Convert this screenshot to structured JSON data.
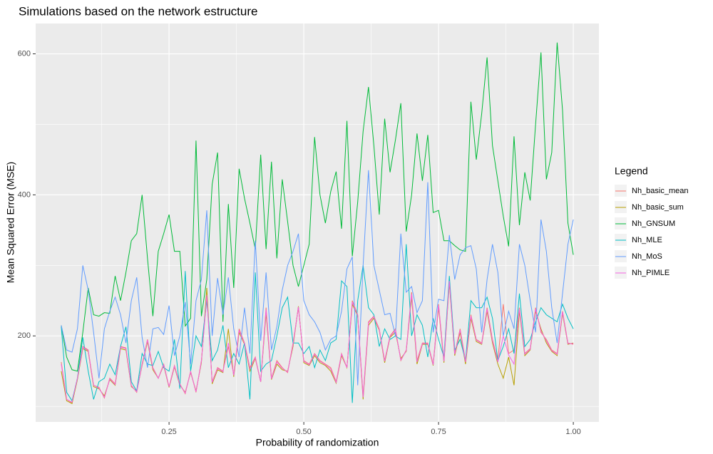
{
  "chart_data": {
    "type": "line",
    "title": "Simulations based on the network estructure",
    "x_label": "Probability of randomization",
    "y_label": "Mean Squared Error (MSE)",
    "legend_title": "Legend",
    "legend_position": "right",
    "grid": true,
    "xlim": [
      0.0025,
      1.0475
    ],
    "ylim": [
      78,
      643
    ],
    "xticks": [
      0.25,
      {
        "value": 0.5,
        "label": "0.50"
      },
      0.75,
      {
        "value": 1.0,
        "label": "1.00"
      }
    ],
    "yticks": [
      200,
      400,
      600
    ],
    "minor_xticks": [
      0.125,
      0.375,
      0.625,
      0.875
    ],
    "minor_yticks": [
      100,
      300,
      500
    ],
    "x": [
      0.05,
      0.06,
      0.07,
      0.08,
      0.09,
      0.1,
      0.11,
      0.12,
      0.13,
      0.14,
      0.15,
      0.16,
      0.17,
      0.18,
      0.19,
      0.2,
      0.21,
      0.22,
      0.23,
      0.24,
      0.25,
      0.26,
      0.27,
      0.28,
      0.29,
      0.3,
      0.31,
      0.32,
      0.33,
      0.34,
      0.35,
      0.36,
      0.37,
      0.38,
      0.39,
      0.4,
      0.41,
      0.42,
      0.43,
      0.44,
      0.45,
      0.46,
      0.47,
      0.48,
      0.49,
      0.5,
      0.51,
      0.52,
      0.53,
      0.54,
      0.55,
      0.56,
      0.57,
      0.58,
      0.59,
      0.6,
      0.61,
      0.62,
      0.63,
      0.64,
      0.65,
      0.66,
      0.67,
      0.68,
      0.69,
      0.7,
      0.71,
      0.72,
      0.73,
      0.74,
      0.75,
      0.76,
      0.77,
      0.78,
      0.79,
      0.8,
      0.81,
      0.82,
      0.83,
      0.84,
      0.85,
      0.86,
      0.87,
      0.88,
      0.89,
      0.9,
      0.91,
      0.92,
      0.93,
      0.94,
      0.95,
      0.96,
      0.97,
      0.98,
      0.99,
      1.0
    ],
    "series": [
      {
        "name": "Nh_basic_mean",
        "color": "#F8766D",
        "values": [
          163,
          110,
          105,
          140,
          185,
          180,
          130,
          127,
          112,
          140,
          132,
          185,
          183,
          130,
          120,
          160,
          195,
          155,
          140,
          160,
          128,
          158,
          132,
          118,
          150,
          120,
          165,
          255,
          135,
          155,
          150,
          185,
          145,
          210,
          190,
          155,
          170,
          135,
          240,
          140,
          165,
          155,
          148,
          190,
          240,
          165,
          160,
          175,
          165,
          160,
          155,
          135,
          175,
          155,
          250,
          230,
          115,
          220,
          228,
          210,
          165,
          200,
          210,
          165,
          180,
          262,
          165,
          190,
          190,
          160,
          245,
          165,
          280,
          175,
          210,
          165,
          230,
          195,
          190,
          240,
          195,
          165,
          245,
          175,
          180,
          240,
          175,
          182,
          240,
          205,
          195,
          180,
          175,
          235,
          190,
          188
        ]
      },
      {
        "name": "Nh_basic_sum",
        "color": "#B79F00",
        "values": [
          150,
          108,
          104,
          138,
          182,
          178,
          128,
          125,
          115,
          138,
          130,
          182,
          180,
          128,
          122,
          158,
          192,
          152,
          140,
          158,
          127,
          156,
          130,
          120,
          148,
          122,
          162,
          268,
          132,
          152,
          148,
          210,
          142,
          205,
          188,
          150,
          168,
          135,
          232,
          138,
          160,
          152,
          150,
          185,
          242,
          162,
          158,
          172,
          162,
          158,
          150,
          133,
          172,
          155,
          245,
          228,
          110,
          215,
          225,
          208,
          162,
          198,
          205,
          168,
          178,
          255,
          160,
          188,
          188,
          158,
          240,
          162,
          275,
          172,
          205,
          160,
          225,
          192,
          188,
          235,
          190,
          160,
          140,
          170,
          130,
          235,
          172,
          180,
          235,
          210,
          190,
          178,
          172,
          232,
          188,
          190
        ]
      },
      {
        "name": "Nh_GNSUM",
        "color": "#00BA38",
        "values": [
          215,
          170,
          152,
          150,
          205,
          268,
          230,
          228,
          233,
          232,
          285,
          250,
          290,
          335,
          345,
          400,
          310,
          228,
          320,
          345,
          372,
          320,
          320,
          214,
          225,
          477,
          228,
          280,
          415,
          460,
          220,
          387,
          268,
          437,
          395,
          360,
          323,
          457,
          323,
          447,
          310,
          422,
          362,
          300,
          270,
          300,
          330,
          482,
          400,
          360,
          405,
          433,
          352,
          505,
          313,
          390,
          490,
          553,
          470,
          372,
          508,
          432,
          478,
          530,
          348,
          400,
          487,
          420,
          485,
          375,
          378,
          335,
          335,
          328,
          322,
          320,
          532,
          450,
          515,
          595,
          470,
          420,
          370,
          327,
          483,
          357,
          432,
          392,
          500,
          602,
          422,
          460,
          616,
          520,
          360,
          315
        ]
      },
      {
        "name": "Nh_MLE",
        "color": "#00BFC4",
        "values": [
          213,
          120,
          108,
          140,
          198,
          150,
          110,
          135,
          140,
          160,
          145,
          185,
          213,
          135,
          122,
          175,
          160,
          158,
          178,
          155,
          150,
          195,
          125,
          292,
          150,
          200,
          185,
          250,
          165,
          180,
          215,
          155,
          175,
          160,
          190,
          110,
          290,
          150,
          160,
          165,
          200,
          240,
          255,
          190,
          190,
          175,
          185,
          155,
          180,
          165,
          190,
          195,
          278,
          270,
          105,
          250,
          300,
          240,
          230,
          185,
          210,
          195,
          200,
          195,
          330,
          200,
          230,
          215,
          170,
          225,
          195,
          170,
          285,
          180,
          195,
          165,
          250,
          240,
          240,
          255,
          225,
          165,
          185,
          210,
          175,
          260,
          185,
          195,
          220,
          240,
          230,
          225,
          220,
          245,
          225,
          210
        ]
      },
      {
        "name": "Nh_MoS",
        "color": "#619CFF",
        "values": [
          215,
          180,
          177,
          210,
          300,
          265,
          205,
          140,
          210,
          235,
          255,
          230,
          190,
          250,
          283,
          198,
          155,
          210,
          212,
          202,
          243,
          172,
          200,
          248,
          160,
          250,
          280,
          378,
          200,
          282,
          230,
          283,
          210,
          170,
          240,
          175,
          335,
          193,
          290,
          180,
          213,
          265,
          300,
          320,
          345,
          250,
          230,
          220,
          205,
          180,
          195,
          200,
          235,
          295,
          312,
          130,
          300,
          435,
          300,
          265,
          230,
          232,
          200,
          345,
          262,
          270,
          233,
          250,
          418,
          205,
          252,
          250,
          343,
          280,
          315,
          325,
          328,
          295,
          205,
          280,
          330,
          290,
          200,
          235,
          210,
          330,
          300,
          250,
          205,
          365,
          320,
          240,
          190,
          260,
          330,
          365
        ]
      },
      {
        "name": "Nh_PIMLE",
        "color": "#F564E3",
        "values": [
          160,
          110,
          106,
          140,
          184,
          179,
          130,
          126,
          113,
          139,
          131,
          184,
          182,
          129,
          121,
          159,
          194,
          154,
          140,
          159,
          128,
          157,
          131,
          119,
          149,
          121,
          164,
          258,
          134,
          154,
          149,
          190,
          144,
          208,
          189,
          153,
          169,
          135,
          237,
          139,
          163,
          154,
          149,
          188,
          241,
          164,
          159,
          174,
          164,
          159,
          153,
          134,
          174,
          155,
          248,
          229,
          113,
          218,
          227,
          209,
          164,
          199,
          208,
          166,
          179,
          259,
          163,
          189,
          189,
          159,
          243,
          164,
          278,
          174,
          208,
          163,
          228,
          194,
          189,
          238,
          193,
          163,
          200,
          173,
          160,
          238,
          174,
          181,
          238,
          207,
          193,
          179,
          174,
          234,
          189,
          189
        ]
      }
    ]
  }
}
